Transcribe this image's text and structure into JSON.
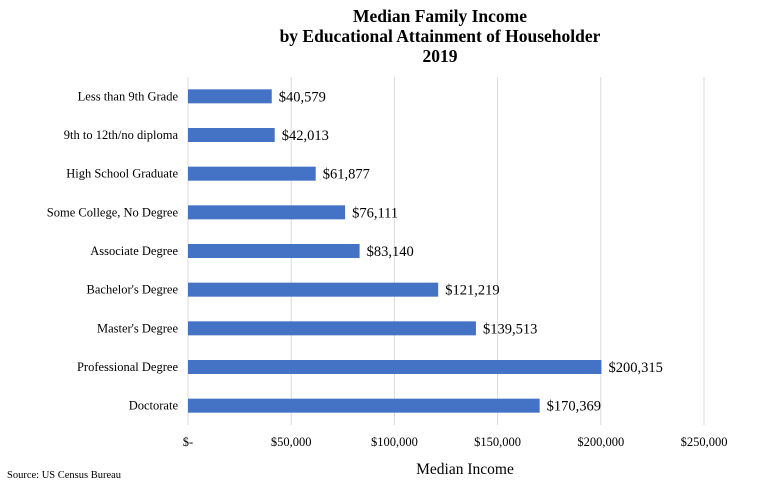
{
  "chart_data": {
    "type": "bar",
    "orientation": "horizontal",
    "title": [
      "Median Family Income",
      "by Educational Attainment of Householder",
      "2019"
    ],
    "xlabel": "Median Income",
    "ylabel": "",
    "categories": [
      "Less than 9th Grade",
      "9th to 12th/no diploma",
      "High School Graduate",
      "Some College, No Degree",
      "Associate Degree",
      "Bachelor's Degree",
      "Master's Degree",
      "Professional Degree",
      "Doctorate"
    ],
    "values": [
      40579,
      42013,
      61877,
      76111,
      83140,
      121219,
      139513,
      200315,
      170369
    ],
    "data_labels": [
      "$40,579",
      "$42,013",
      "$61,877",
      "$76,111",
      "$83,140",
      "$121,219",
      "$139,513",
      "$200,315",
      "$170,369"
    ],
    "xlim": [
      0,
      250000
    ],
    "ticks": [
      0,
      50000,
      100000,
      150000,
      200000,
      250000
    ],
    "tick_labels": [
      "$-",
      "$50,000",
      "$100,000",
      "$150,000",
      "$200,000",
      "$250,000"
    ],
    "grid": "vertical",
    "legend": "none",
    "bar_color": "#4472c4",
    "grid_color": "#d9d9d9"
  },
  "source": "Source: US Census Bureau"
}
